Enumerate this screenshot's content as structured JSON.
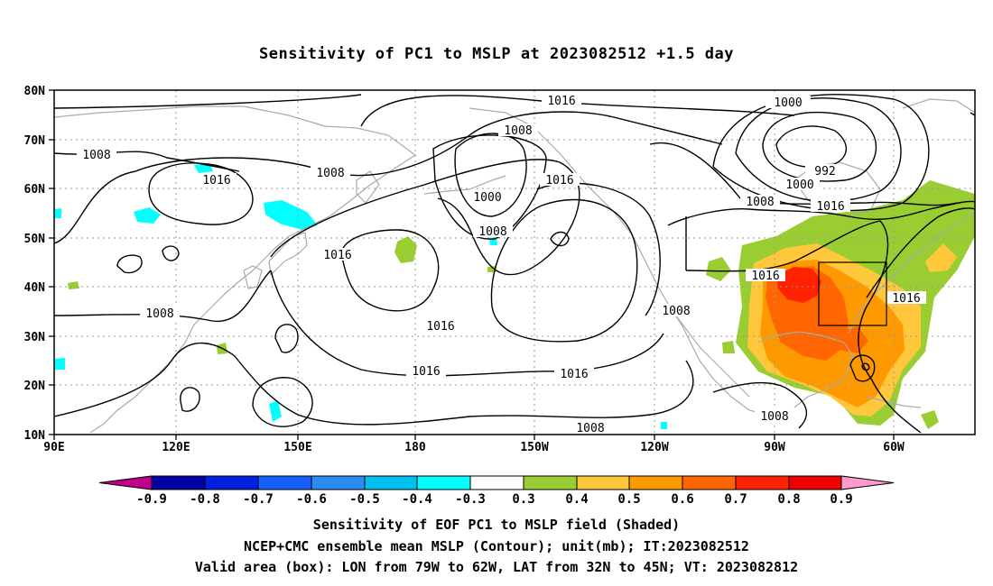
{
  "title": "Sensitivity of PC1 to MSLP at 2023082512 +1.5 day",
  "lat_labels": [
    "80N",
    "70N",
    "60N",
    "50N",
    "40N",
    "30N",
    "20N",
    "10N"
  ],
  "lon_labels": [
    "90E",
    "120E",
    "150E",
    "180",
    "150W",
    "120W",
    "90W",
    "60W"
  ],
  "colorbar": {
    "labels": [
      "-0.9",
      "-0.8",
      "-0.7",
      "-0.6",
      "-0.5",
      "-0.4",
      "-0.3",
      "0.3",
      "0.4",
      "0.5",
      "0.6",
      "0.7",
      "0.8",
      "0.9"
    ],
    "colors": [
      "#0000a0",
      "#0020e0",
      "#1560ff",
      "#2a8cf0",
      "#00c0f0",
      "#00ffff",
      "#ffffff",
      "#9acd32",
      "#ffc83c",
      "#ff9900",
      "#ff6600",
      "#ff2200",
      "#ee0000"
    ],
    "low_extend_color": "#c0008c",
    "high_extend_color": "#ff9ccc"
  },
  "contour_labels": [
    "1016",
    "1000",
    "1008",
    "1008",
    "1016",
    "1008",
    "1016",
    "1000",
    "1008",
    "1016",
    "992",
    "1000",
    "1008",
    "1016",
    "1016",
    "1016",
    "1008",
    "1016",
    "1016",
    "1016",
    "1008",
    "1008",
    "1008"
  ],
  "caption": {
    "line1": "Sensitivity of EOF PC1 to MSLP field (Shaded)",
    "line2": "NCEP+CMC ensemble mean MSLP (Contour); unit(mb); IT:2023082512",
    "line3": "Valid area (box): LON from 79W to 62W, LAT from 32N to 45N; VT: 2023082812"
  },
  "valid_area": {
    "lon_min": -79,
    "lon_max": -62,
    "lat_min": 32,
    "lat_max": 45
  }
}
